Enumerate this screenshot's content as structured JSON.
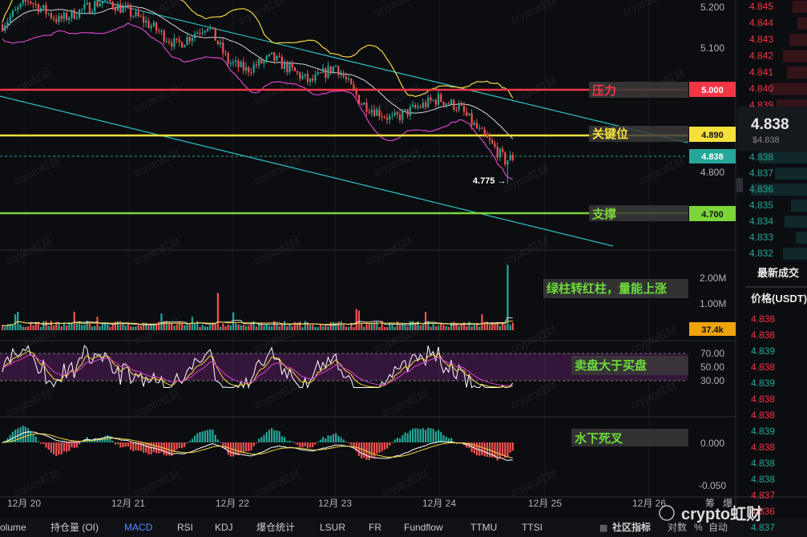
{
  "colors": {
    "background": "#0b0d10",
    "up": "#26a69a",
    "down": "#ef5350",
    "pressure": "#f23645",
    "key": "#f7e03c",
    "support": "#7cd63a",
    "channel": "#2ec4c9",
    "bb_upper": "#f5d742",
    "bb_lower": "#d945c8",
    "bb_mid": "#d8d8d8",
    "rsi_band": "#5a1f5e",
    "annotation_green": "#6fdc3b",
    "current_price_box": "#26a69a",
    "volume_box": "#f0a20a"
  },
  "watermark": "crypto虹财",
  "price_pane": {
    "axis_ticks": [
      "5.200",
      "5.100",
      "4.800"
    ],
    "current_price": "4.838",
    "low_marker": "4.775 →",
    "levels": [
      {
        "label": "压力",
        "value": "5.000"
      },
      {
        "label": "关键位",
        "value": "4.890"
      },
      {
        "label": "支撑",
        "value": "4.700"
      }
    ]
  },
  "volume_pane": {
    "axis_ticks": [
      "2.00M",
      "1.00M"
    ],
    "last_value": "37.4k",
    "annotation": "绿柱转红柱，量能上涨"
  },
  "rsi_pane": {
    "axis_ticks": [
      "70.00",
      "50.00",
      "30.00"
    ],
    "annotation": "卖盘大于买盘"
  },
  "macd_pane": {
    "axis_ticks": [
      "0.000",
      "-0.050"
    ],
    "annotation": "水下死叉"
  },
  "x_axis": {
    "dates": [
      "12月 20",
      "12月 21",
      "12月 22",
      "12月 23",
      "12月 24",
      "12月 25",
      "12月 26"
    ]
  },
  "order_book": {
    "top_asks": [
      "4.845",
      "4.844",
      "4.843",
      "4.842",
      "4.841",
      "4.840",
      "4.839"
    ],
    "last_price": "4.838",
    "last_price_usd": "$4.838",
    "bids": [
      "4.838",
      "4.837",
      "4.836",
      "4.835",
      "4.834",
      "4.833",
      "4.832"
    ],
    "trades_title": "最新成交",
    "price_header": "价格(USDT)",
    "trades": [
      "4.838",
      "4.838",
      "4.839",
      "4.838",
      "4.839",
      "4.838",
      "4.838",
      "4.839",
      "4.838",
      "4.838",
      "4.838",
      "4.837",
      "4.836",
      "4.837"
    ],
    "trade_up": [
      false,
      false,
      true,
      false,
      true,
      false,
      false,
      true,
      false,
      true,
      true,
      false,
      false,
      true
    ]
  },
  "bottom_tabs": [
    "olume",
    "持仓量 (OI)",
    "MACD",
    "RSI",
    "KDJ",
    "爆仓统计",
    "LSUR",
    "FR",
    "Fundflow",
    "TTMU",
    "TTSI"
  ],
  "active_tab": "MACD",
  "bottom_right": {
    "community": "社区指标",
    "log": "对数",
    "pct": "%",
    "auto": "自动",
    "corner1": "筹",
    "corner2": "爆"
  },
  "chart_data": {
    "type": "candlestick",
    "x_labels": [
      "12月 20",
      "12月 21",
      "12月 22",
      "12月 23",
      "12月 24",
      "12月 25",
      "12月 26"
    ],
    "price_levels": {
      "pressure": 5.0,
      "key": 4.89,
      "support": 4.7
    },
    "last_price": 4.838,
    "session_low": 4.775,
    "volume_last": "37.4k",
    "rsi_bands": [
      30,
      50,
      70
    ],
    "ylim_price": [
      4.62,
      5.24
    ]
  }
}
